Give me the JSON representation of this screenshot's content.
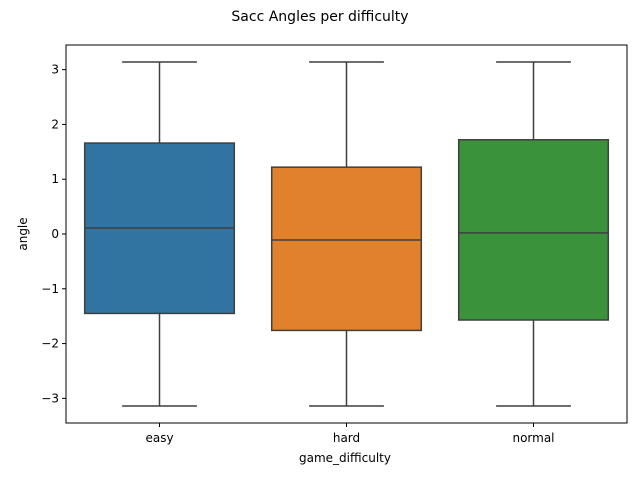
{
  "chart_data": {
    "type": "box",
    "title": "Sacc Angles per difficulty",
    "xlabel": "game_difficulty",
    "ylabel": "angle",
    "categories": [
      "easy",
      "hard",
      "normal"
    ],
    "colors": [
      "#3274a1",
      "#e1812c",
      "#3a923a"
    ],
    "boxes": [
      {
        "category": "easy",
        "whisker_low": -3.14,
        "q1": -1.45,
        "median": 0.11,
        "q3": 1.66,
        "whisker_high": 3.14
      },
      {
        "category": "hard",
        "whisker_low": -3.14,
        "q1": -1.76,
        "median": -0.11,
        "q3": 1.22,
        "whisker_high": 3.14
      },
      {
        "category": "normal",
        "whisker_low": -3.14,
        "q1": -1.57,
        "median": 0.02,
        "q3": 1.72,
        "whisker_high": 3.14
      }
    ],
    "y_ticks": [
      -3,
      -2,
      -1,
      0,
      1,
      2,
      3
    ],
    "y_tick_labels": [
      "−3",
      "−2",
      "−1",
      "0",
      "1",
      "2",
      "3"
    ],
    "ylim": [
      -3.45,
      3.45
    ],
    "grid": false,
    "legend": "none"
  }
}
